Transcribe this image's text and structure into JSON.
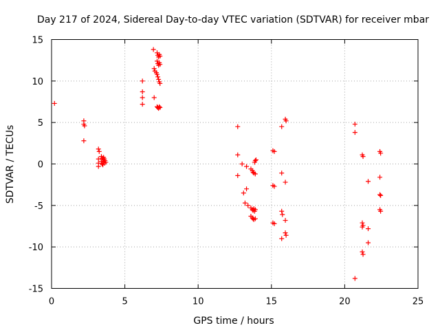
{
  "chart_data": {
    "type": "scatter",
    "title": "Day 217 of 2024, Sidereal Day-to-day VTEC variation (SDTVAR) for receiver mbar",
    "xlabel": "GPS time / hours",
    "ylabel": "SDTVAR / TECUs",
    "xlim": [
      0,
      25
    ],
    "ylim": [
      -15,
      15
    ],
    "xticks": [
      0,
      5,
      10,
      15,
      20,
      25
    ],
    "yticks": [
      -15,
      -10,
      -5,
      0,
      5,
      10,
      15
    ],
    "xtick_labels": [
      "0",
      "5",
      "10",
      "15",
      "20",
      "25"
    ],
    "ytick_labels": [
      "-15",
      "-10",
      "-5",
      "0",
      "5",
      "10",
      "15"
    ],
    "grid": true,
    "marker": "+",
    "color": "#ff0000",
    "series": [
      {
        "name": "SDTVAR",
        "points": [
          [
            0.2,
            7.3
          ],
          [
            2.2,
            5.2
          ],
          [
            2.2,
            4.8
          ],
          [
            2.25,
            4.6
          ],
          [
            2.2,
            2.8
          ],
          [
            3.2,
            1.8
          ],
          [
            3.25,
            1.5
          ],
          [
            3.2,
            0.6
          ],
          [
            3.2,
            0.1
          ],
          [
            3.2,
            -0.3
          ],
          [
            3.4,
            0.9
          ],
          [
            3.45,
            0.7
          ],
          [
            3.5,
            0.5
          ],
          [
            3.55,
            0.3
          ],
          [
            3.6,
            0.1
          ],
          [
            3.45,
            0.0
          ],
          [
            3.5,
            -0.1
          ],
          [
            3.6,
            0.6
          ],
          [
            3.65,
            0.4
          ],
          [
            3.55,
            0.8
          ],
          [
            3.7,
            0.2
          ],
          [
            3.4,
            0.3
          ],
          [
            6.2,
            10.0
          ],
          [
            6.2,
            8.7
          ],
          [
            6.2,
            8.0
          ],
          [
            6.2,
            7.2
          ],
          [
            6.95,
            13.8
          ],
          [
            7.0,
            11.5
          ],
          [
            7.05,
            11.2
          ],
          [
            7.0,
            8.0
          ],
          [
            7.2,
            13.4
          ],
          [
            7.25,
            13.1
          ],
          [
            7.3,
            12.9
          ],
          [
            7.35,
            13.2
          ],
          [
            7.4,
            13.0
          ],
          [
            7.2,
            12.4
          ],
          [
            7.25,
            12.1
          ],
          [
            7.3,
            11.9
          ],
          [
            7.35,
            12.2
          ],
          [
            7.4,
            12.0
          ],
          [
            7.15,
            11.0
          ],
          [
            7.2,
            10.8
          ],
          [
            7.25,
            10.5
          ],
          [
            7.3,
            10.2
          ],
          [
            7.35,
            9.9
          ],
          [
            7.4,
            9.7
          ],
          [
            7.2,
            6.9
          ],
          [
            7.25,
            6.8
          ],
          [
            7.3,
            6.7
          ],
          [
            7.35,
            6.9
          ],
          [
            7.4,
            6.8
          ],
          [
            12.7,
            4.5
          ],
          [
            12.7,
            1.1
          ],
          [
            12.7,
            -1.4
          ],
          [
            13.0,
            0.0
          ],
          [
            13.1,
            -3.5
          ],
          [
            13.2,
            -4.7
          ],
          [
            13.3,
            -3.0
          ],
          [
            13.4,
            -5.0
          ],
          [
            13.3,
            -0.3
          ],
          [
            13.6,
            -0.6
          ],
          [
            13.7,
            -0.8
          ],
          [
            13.75,
            -1.0
          ],
          [
            13.8,
            -1.1
          ],
          [
            13.9,
            -1.2
          ],
          [
            13.85,
            0.2
          ],
          [
            13.9,
            0.4
          ],
          [
            13.95,
            0.5
          ],
          [
            13.6,
            -5.3
          ],
          [
            13.7,
            -5.5
          ],
          [
            13.75,
            -5.6
          ],
          [
            13.8,
            -5.4
          ],
          [
            13.9,
            -5.5
          ],
          [
            13.85,
            -5.7
          ],
          [
            13.6,
            -6.3
          ],
          [
            13.7,
            -6.5
          ],
          [
            13.75,
            -6.6
          ],
          [
            13.8,
            -6.7
          ],
          [
            13.9,
            -6.6
          ],
          [
            15.1,
            1.6
          ],
          [
            15.2,
            1.5
          ],
          [
            15.1,
            -2.6
          ],
          [
            15.2,
            -2.7
          ],
          [
            15.1,
            -7.1
          ],
          [
            15.2,
            -7.2
          ],
          [
            15.7,
            4.5
          ],
          [
            15.7,
            -1.1
          ],
          [
            15.7,
            -5.7
          ],
          [
            15.75,
            -6.1
          ],
          [
            15.7,
            -9.0
          ],
          [
            15.95,
            5.4
          ],
          [
            16.0,
            5.2
          ],
          [
            15.95,
            -2.2
          ],
          [
            15.95,
            -6.8
          ],
          [
            15.95,
            -8.3
          ],
          [
            16.0,
            -8.6
          ],
          [
            20.7,
            4.8
          ],
          [
            20.7,
            3.8
          ],
          [
            20.7,
            -13.8
          ],
          [
            21.2,
            1.1
          ],
          [
            21.25,
            0.9
          ],
          [
            21.2,
            -7.1
          ],
          [
            21.25,
            -7.4
          ],
          [
            21.2,
            -7.6
          ],
          [
            21.2,
            -10.6
          ],
          [
            21.25,
            -10.9
          ],
          [
            21.6,
            -2.1
          ],
          [
            21.6,
            -7.8
          ],
          [
            21.6,
            -9.5
          ],
          [
            22.4,
            1.5
          ],
          [
            22.45,
            1.3
          ],
          [
            22.4,
            -1.6
          ],
          [
            22.4,
            -3.7
          ],
          [
            22.45,
            -3.8
          ],
          [
            22.4,
            -5.5
          ],
          [
            22.45,
            -5.7
          ]
        ]
      }
    ]
  }
}
